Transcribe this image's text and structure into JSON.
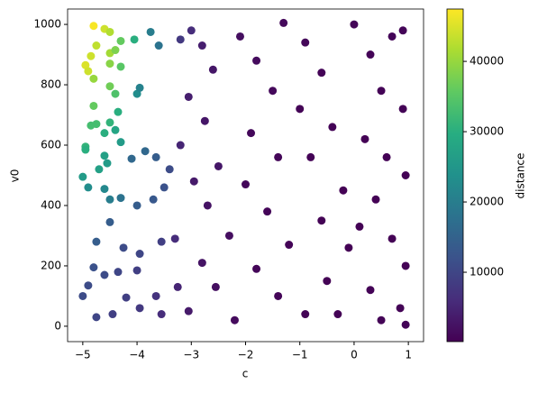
{
  "chart_data": {
    "type": "scatter",
    "xlabel": "c",
    "ylabel": "v0",
    "colorbar_label": "distance",
    "xlim": [
      -5.28,
      1.28
    ],
    "ylim": [
      -51,
      1051
    ],
    "clim": [
      130,
      47450
    ],
    "xticks": [
      {
        "value": -5,
        "label": "−5"
      },
      {
        "value": -4,
        "label": "−4"
      },
      {
        "value": -3,
        "label": "−3"
      },
      {
        "value": -2,
        "label": "−2"
      },
      {
        "value": -1,
        "label": "−1"
      },
      0,
      1
    ],
    "yticks": [
      0,
      200,
      400,
      600,
      800,
      1000
    ],
    "cticks": [
      10000,
      20000,
      30000,
      40000
    ],
    "colormap": "viridis",
    "x": [
      -4.8,
      -4.6,
      -4.5,
      -4.75,
      -4.85,
      -4.95,
      -4.9,
      -4.5,
      -4.4,
      -4.3,
      -4.05,
      -4.3,
      -4.5,
      -4.8,
      -4.5,
      -4.4,
      -4.8,
      -4.85,
      -4.75,
      -4.5,
      -4.35,
      -4.4,
      -4.6,
      -4.95,
      -4.95,
      -4.3,
      -4.6,
      -4.55,
      -4.7,
      -5.0,
      -4.9,
      -4.6,
      -4.5,
      -4.3,
      -4.0,
      -3.95,
      -3.75,
      -3.6,
      -3.85,
      -4.1,
      -3.65,
      -3.5,
      -3.4,
      -3.7,
      -4.0,
      -4.5,
      -4.75,
      -4.25,
      -3.95,
      -3.55,
      -4.8,
      -4.6,
      -4.35,
      -4.0,
      -5.0,
      -4.9,
      -4.75,
      -4.45,
      -4.2,
      -3.95,
      -3.65,
      -3.55,
      -3.3,
      -3.25,
      -3.2,
      -3.0,
      -2.8,
      -2.6,
      -3.05,
      -2.75,
      -3.2,
      -2.5,
      -2.95,
      -2.7,
      -2.3,
      -2.8,
      -3.05,
      -2.55,
      -2.2,
      -2.1,
      -1.8,
      -1.5,
      -1.9,
      -1.4,
      -2.0,
      -1.6,
      -1.2,
      -1.8,
      -1.4,
      -1.3,
      -0.9,
      -0.6,
      -1.0,
      -0.4,
      -0.8,
      -0.2,
      -0.6,
      -0.1,
      -0.5,
      -0.9,
      0.0,
      0.3,
      0.7,
      0.9,
      0.5,
      0.9,
      0.2,
      0.6,
      0.95,
      0.4,
      0.1,
      0.7,
      0.95,
      0.3,
      0.85,
      0.95,
      0.5,
      -0.3
    ],
    "values": [
      995,
      985,
      975,
      930,
      895,
      865,
      845,
      905,
      915,
      945,
      950,
      860,
      870,
      820,
      795,
      770,
      730,
      665,
      670,
      675,
      710,
      650,
      640,
      595,
      585,
      610,
      565,
      540,
      520,
      495,
      460,
      455,
      420,
      425,
      770,
      790,
      975,
      930,
      580,
      555,
      560,
      460,
      520,
      420,
      400,
      345,
      280,
      260,
      240,
      280,
      195,
      170,
      180,
      185,
      100,
      135,
      30,
      40,
      95,
      60,
      100,
      40,
      290,
      130,
      950,
      980,
      930,
      850,
      760,
      680,
      600,
      530,
      480,
      400,
      300,
      210,
      50,
      130,
      20,
      960,
      880,
      780,
      640,
      560,
      470,
      380,
      270,
      190,
      100,
      1005,
      940,
      840,
      720,
      660,
      560,
      450,
      350,
      260,
      150,
      40,
      1000,
      900,
      960,
      980,
      780,
      720,
      620,
      560,
      500,
      420,
      330,
      290,
      200,
      120,
      60,
      5,
      20,
      40
    ],
    "color_values": [
      47000,
      44000,
      42000,
      43000,
      44000,
      45000,
      44000,
      41000,
      38000,
      36000,
      30000,
      35000,
      39000,
      40000,
      37000,
      34000,
      36000,
      33000,
      33000,
      31000,
      30000,
      28000,
      30000,
      31000,
      30000,
      26000,
      27000,
      26000,
      27000,
      26000,
      23000,
      22000,
      20000,
      18000,
      23000,
      21000,
      20000,
      18000,
      16000,
      16000,
      14000,
      12000,
      11000,
      13000,
      14000,
      14000,
      14000,
      11000,
      10000,
      9000,
      12000,
      11000,
      10000,
      9000,
      11000,
      11000,
      10000,
      9000,
      9000,
      8000,
      7000,
      6000,
      6000,
      5000,
      8000,
      6000,
      4000,
      3000,
      4000,
      3000,
      5000,
      3000,
      3500,
      2500,
      2000,
      2500,
      3500,
      2000,
      1500,
      2000,
      1500,
      1200,
      1000,
      800,
      1000,
      700,
      600,
      800,
      700,
      1200,
      900,
      600,
      500,
      400,
      400,
      300,
      350,
      300,
      350,
      500,
      800,
      600,
      700,
      700,
      400,
      400,
      300,
      300,
      300,
      300,
      300,
      300,
      350,
      400,
      500,
      600,
      500,
      450
    ]
  }
}
